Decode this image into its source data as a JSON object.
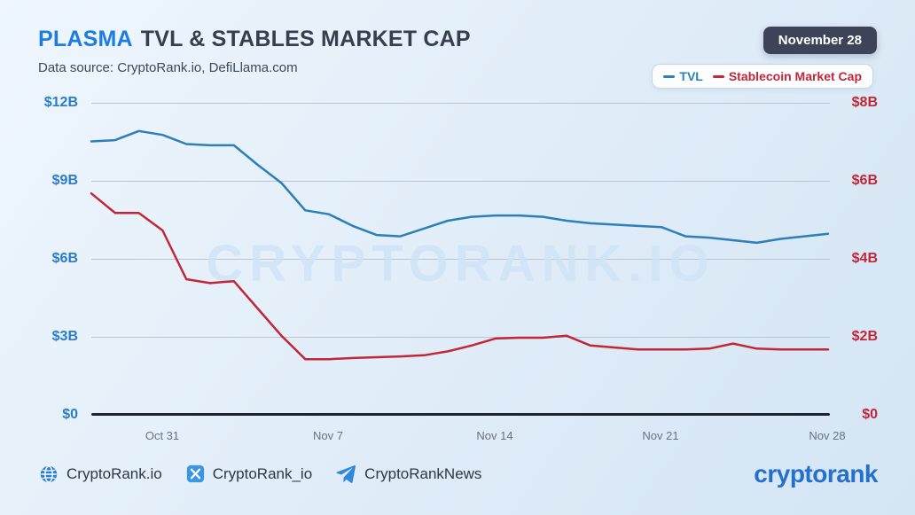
{
  "header": {
    "title_highlight": "PLASMA",
    "title_rest": "TVL & STABLES MARKET CAP",
    "subtitle": "Data source: CryptoRank.io, DefiLlama.com",
    "date_badge": "November 28"
  },
  "legend": {
    "items": [
      {
        "label": "TVL",
        "color": "#2c7fb8"
      },
      {
        "label": "Stablecoin Market Cap",
        "color": "#c22737"
      }
    ]
  },
  "chart_data": {
    "type": "line",
    "title": "PLASMA TVL & STABLES MARKET CAP",
    "watermark": "CRYPTORANK.IO",
    "grid": true,
    "legend_position": "top-right",
    "x": [
      "Oct 28",
      "Oct 29",
      "Oct 30",
      "Oct 31",
      "Nov 1",
      "Nov 2",
      "Nov 3",
      "Nov 4",
      "Nov 5",
      "Nov 6",
      "Nov 7",
      "Nov 8",
      "Nov 9",
      "Nov 10",
      "Nov 11",
      "Nov 12",
      "Nov 13",
      "Nov 14",
      "Nov 15",
      "Nov 16",
      "Nov 17",
      "Nov 18",
      "Nov 19",
      "Nov 20",
      "Nov 21",
      "Nov 22",
      "Nov 23",
      "Nov 24",
      "Nov 25",
      "Nov 26",
      "Nov 27",
      "Nov 28"
    ],
    "x_tick_labels": [
      "Oct 31",
      "Nov 7",
      "Nov 14",
      "Nov 21",
      "Nov 28"
    ],
    "left_axis": {
      "ticks": [
        "$12B",
        "$9B",
        "$6B",
        "$3B",
        "$0"
      ],
      "min": 0,
      "max": 12,
      "unit": "USD billions",
      "color": "#2b7cc9"
    },
    "right_axis": {
      "ticks": [
        "$8B",
        "$6B",
        "$4B",
        "$2B",
        "$0"
      ],
      "min": 0,
      "max": 8,
      "unit": "USD billions",
      "color": "#c22737"
    },
    "series": [
      {
        "name": "TVL",
        "axis": "left",
        "color": "#2c7fb8",
        "values": [
          10.55,
          10.6,
          10.95,
          10.8,
          10.45,
          10.4,
          10.4,
          9.65,
          8.95,
          7.9,
          7.75,
          7.3,
          6.95,
          6.9,
          7.2,
          7.5,
          7.65,
          7.7,
          7.7,
          7.65,
          7.5,
          7.4,
          7.35,
          7.3,
          7.25,
          6.9,
          6.85,
          6.75,
          6.65,
          6.8,
          6.9,
          7.0
        ]
      },
      {
        "name": "Stablecoin Market Cap",
        "axis": "right",
        "color": "#c22737",
        "values": [
          5.7,
          5.2,
          5.2,
          4.75,
          3.5,
          3.4,
          3.45,
          2.75,
          2.05,
          1.45,
          1.45,
          1.48,
          1.5,
          1.52,
          1.55,
          1.65,
          1.8,
          1.98,
          2.0,
          2.0,
          2.05,
          1.8,
          1.75,
          1.7,
          1.7,
          1.7,
          1.72,
          1.85,
          1.72,
          1.7,
          1.7,
          1.7
        ]
      }
    ]
  },
  "footer": {
    "links": [
      {
        "icon": "globe-icon",
        "label": "CryptoRank.io"
      },
      {
        "icon": "x-icon",
        "label": "CryptoRank_io"
      },
      {
        "icon": "telegram-icon",
        "label": "CryptoRankNews"
      }
    ],
    "logo_text": "cryptorank"
  }
}
